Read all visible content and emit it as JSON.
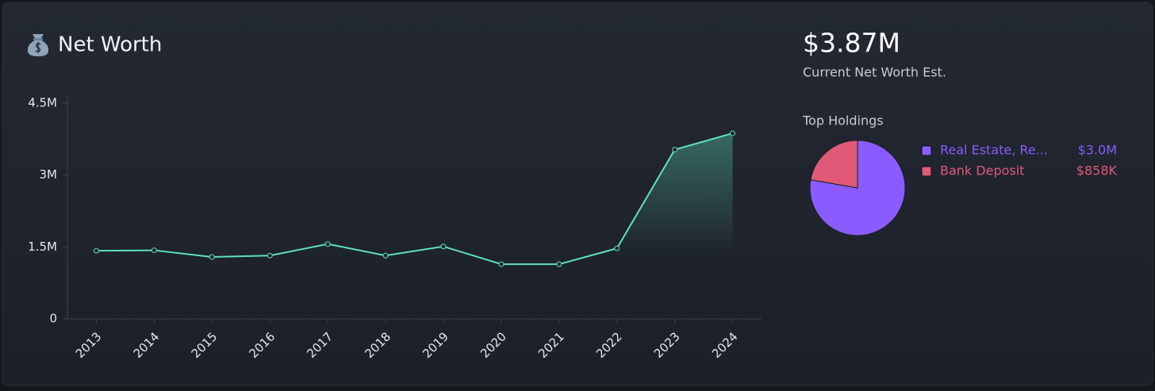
{
  "summary": {
    "value": "$3.87M",
    "label": "Current Net Worth Est."
  },
  "chart_data": [
    {
      "type": "line",
      "title": "Net Worth",
      "categories": [
        "2013",
        "2014",
        "2015",
        "2016",
        "2017",
        "2018",
        "2019",
        "2020",
        "2021",
        "2022",
        "2023",
        "2024"
      ],
      "values": [
        1420000,
        1430000,
        1290000,
        1320000,
        1560000,
        1320000,
        1510000,
        1140000,
        1140000,
        1470000,
        3530000,
        3870000
      ],
      "color": "#5ee0c0",
      "ylim": [
        0,
        4500000
      ],
      "yticks": [
        0,
        {
          "value": 1500000,
          "label": "1.5M"
        },
        {
          "value": 3000000,
          "label": "3M"
        },
        {
          "value": 4500000,
          "label": "4.5M"
        }
      ]
    },
    {
      "type": "pie",
      "title": "Top Holdings",
      "categories": [
        "Real Estate, Re...",
        "Bank Deposit"
      ],
      "values": [
        3000000,
        858000
      ],
      "value_labels": [
        "$3.0M",
        "$858K"
      ],
      "colors": [
        "#8a5cff",
        "#e05a78"
      ]
    }
  ]
}
